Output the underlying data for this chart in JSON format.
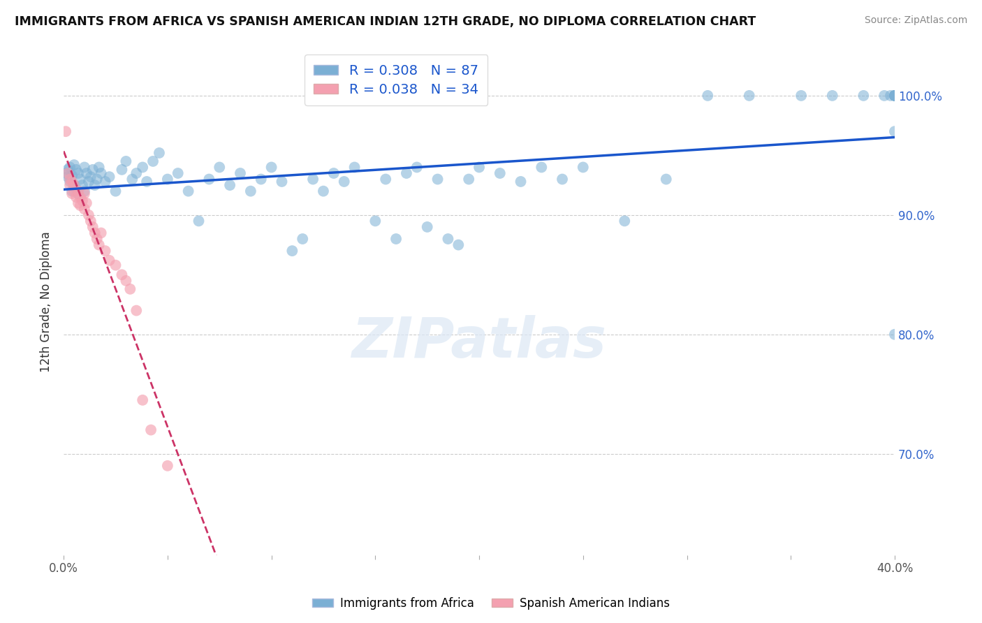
{
  "title": "IMMIGRANTS FROM AFRICA VS SPANISH AMERICAN INDIAN 12TH GRADE, NO DIPLOMA CORRELATION CHART",
  "source": "Source: ZipAtlas.com",
  "ylabel": "12th Grade, No Diploma",
  "x_min": 0.0,
  "x_max": 0.4,
  "y_min": 0.615,
  "y_max": 1.04,
  "y_ticks": [
    0.7,
    0.8,
    0.9,
    1.0
  ],
  "y_tick_labels": [
    "70.0%",
    "80.0%",
    "90.0%",
    "100.0%"
  ],
  "blue_R": "0.308",
  "blue_N": "87",
  "pink_R": "0.038",
  "pink_N": "34",
  "blue_color": "#7BAFD4",
  "pink_color": "#F4A0B0",
  "blue_line_color": "#1a56cc",
  "pink_line_color": "#cc3366",
  "watermark": "ZIPatlas",
  "blue_scatter_x": [
    0.001,
    0.002,
    0.002,
    0.003,
    0.003,
    0.004,
    0.004,
    0.005,
    0.005,
    0.006,
    0.006,
    0.007,
    0.007,
    0.008,
    0.009,
    0.01,
    0.01,
    0.011,
    0.012,
    0.013,
    0.014,
    0.015,
    0.016,
    0.017,
    0.018,
    0.02,
    0.022,
    0.025,
    0.028,
    0.03,
    0.033,
    0.035,
    0.038,
    0.04,
    0.043,
    0.046,
    0.05,
    0.055,
    0.06,
    0.065,
    0.07,
    0.075,
    0.08,
    0.085,
    0.09,
    0.095,
    0.1,
    0.105,
    0.11,
    0.115,
    0.12,
    0.125,
    0.13,
    0.135,
    0.14,
    0.15,
    0.155,
    0.16,
    0.165,
    0.17,
    0.175,
    0.18,
    0.185,
    0.19,
    0.195,
    0.2,
    0.21,
    0.22,
    0.23,
    0.24,
    0.25,
    0.27,
    0.29,
    0.31,
    0.33,
    0.355,
    0.37,
    0.385,
    0.395,
    0.398,
    0.4,
    0.4,
    0.4,
    0.4,
    0.4,
    0.4,
    0.4
  ],
  "blue_scatter_y": [
    0.935,
    0.938,
    0.932,
    0.94,
    0.928,
    0.933,
    0.92,
    0.942,
    0.925,
    0.938,
    0.922,
    0.935,
    0.918,
    0.93,
    0.925,
    0.94,
    0.92,
    0.935,
    0.928,
    0.932,
    0.938,
    0.925,
    0.93,
    0.94,
    0.935,
    0.928,
    0.932,
    0.92,
    0.938,
    0.945,
    0.93,
    0.935,
    0.94,
    0.928,
    0.945,
    0.952,
    0.93,
    0.935,
    0.92,
    0.895,
    0.93,
    0.94,
    0.925,
    0.935,
    0.92,
    0.93,
    0.94,
    0.928,
    0.87,
    0.88,
    0.93,
    0.92,
    0.935,
    0.928,
    0.94,
    0.895,
    0.93,
    0.88,
    0.935,
    0.94,
    0.89,
    0.93,
    0.88,
    0.875,
    0.93,
    0.94,
    0.935,
    0.928,
    0.94,
    0.93,
    0.94,
    0.895,
    0.93,
    1.0,
    1.0,
    1.0,
    1.0,
    1.0,
    1.0,
    1.0,
    1.0,
    1.0,
    1.0,
    1.0,
    0.97,
    1.0,
    0.8
  ],
  "pink_scatter_x": [
    0.001,
    0.002,
    0.003,
    0.003,
    0.004,
    0.004,
    0.005,
    0.005,
    0.006,
    0.007,
    0.007,
    0.008,
    0.008,
    0.009,
    0.01,
    0.01,
    0.011,
    0.012,
    0.013,
    0.014,
    0.015,
    0.016,
    0.017,
    0.018,
    0.02,
    0.022,
    0.025,
    0.028,
    0.03,
    0.032,
    0.035,
    0.038,
    0.042,
    0.05
  ],
  "pink_scatter_y": [
    0.97,
    0.935,
    0.93,
    0.925,
    0.928,
    0.918,
    0.925,
    0.92,
    0.915,
    0.92,
    0.91,
    0.915,
    0.908,
    0.912,
    0.918,
    0.905,
    0.91,
    0.9,
    0.895,
    0.89,
    0.885,
    0.88,
    0.875,
    0.885,
    0.87,
    0.862,
    0.858,
    0.85,
    0.845,
    0.838,
    0.82,
    0.745,
    0.72,
    0.69
  ]
}
